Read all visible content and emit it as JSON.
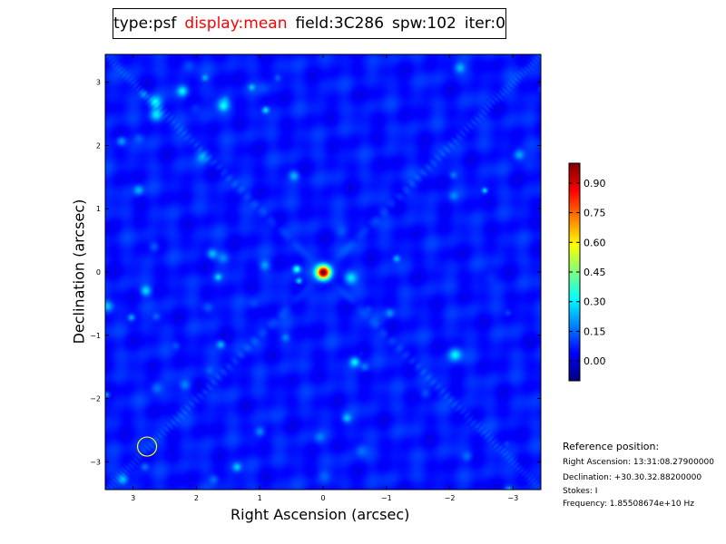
{
  "title": {
    "type": "type:psf",
    "display": "display:mean",
    "field": "field:3C286",
    "spw": "spw:102",
    "iter": "iter:0"
  },
  "colors": {
    "display_label": "#ff0000",
    "region_circle": "#ffff00"
  },
  "chart_data": {
    "type": "heatmap",
    "xlabel": "Right Ascension (arcsec)",
    "ylabel": "Declination (arcsec)",
    "xlim": [
      3.44,
      -3.44
    ],
    "ylim": [
      -3.44,
      3.44
    ],
    "xticks": [
      3,
      2,
      1,
      0,
      -1,
      -2,
      -3
    ],
    "yticks": [
      -3,
      -2,
      -1,
      0,
      1,
      2,
      3
    ],
    "colormap": "jet",
    "colorbar": {
      "range": [
        -0.1,
        1.0
      ],
      "ticks": [
        "0.00",
        "0.15",
        "0.30",
        "0.45",
        "0.60",
        "0.75",
        "0.90"
      ]
    },
    "peak": {
      "x": 0,
      "y": 0,
      "value": 1.0
    },
    "region_circle": {
      "x": 2.78,
      "y": -2.76
    }
  },
  "reference": {
    "heading": "Reference position:",
    "ra": "Right Ascension: 13:31:08.27900000",
    "dec": "Declination: +30.30.32.88200000",
    "stokes": "Stokes: I",
    "freq": "Frequency: 1.85508674e+10 Hz"
  }
}
